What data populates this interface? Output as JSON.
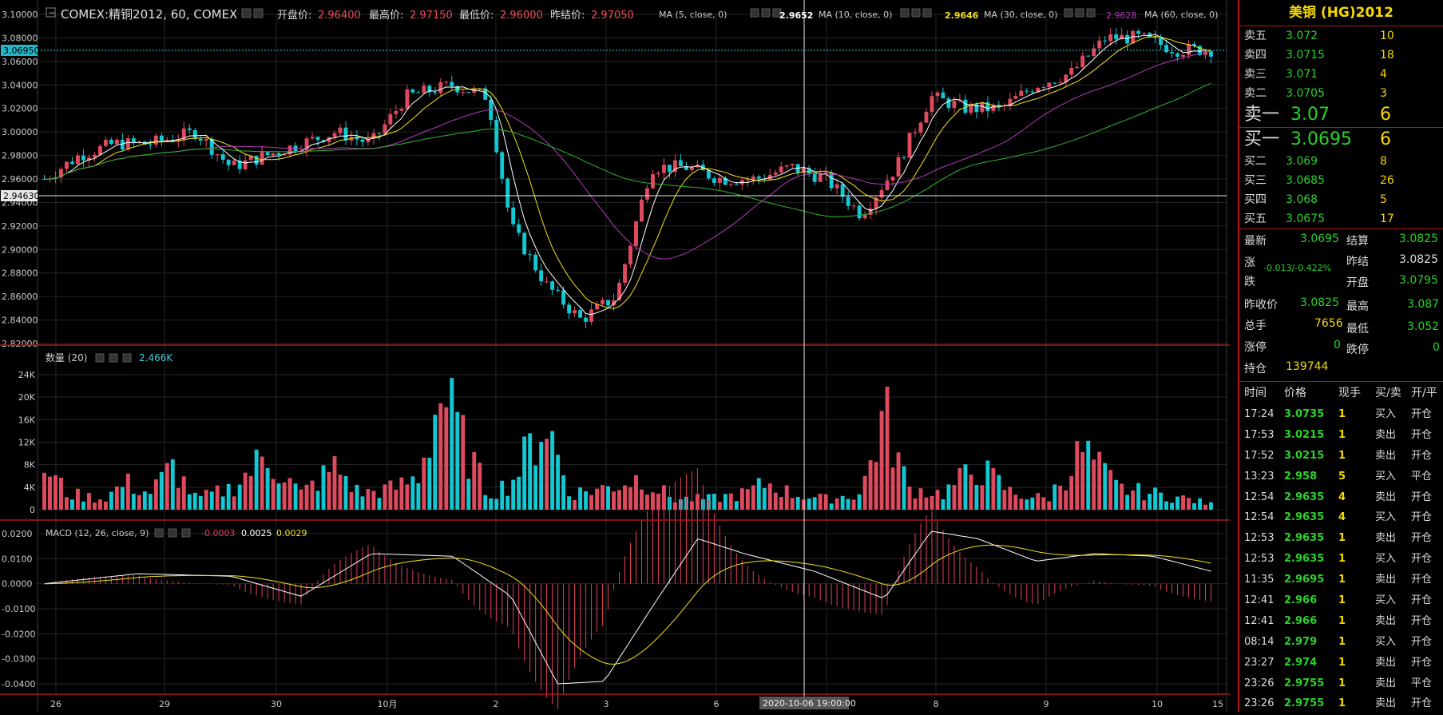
{
  "header": {
    "collapse_glyph": "−",
    "title": "COMEX:精铜2012, 60, COMEX",
    "open_label": "开盘价:",
    "open_value": "2.96400",
    "high_label": "最高价:",
    "high_value": "2.97150",
    "low_label": "最低价:",
    "low_value": "2.96000",
    "prev_label": "昨结价:",
    "prev_value": "2.97050",
    "ma": [
      {
        "label": "MA (5, close, 0)",
        "value": "2.9652",
        "color": "#ffffff"
      },
      {
        "label": "MA (10, close, 0)",
        "value": "2.9646",
        "color": "#f5e11a"
      },
      {
        "label": "MA (30, close, 0)",
        "value": "2.9628",
        "color": "#b03bb8"
      },
      {
        "label": "MA (60, close, 0)",
        "value": "",
        "color": "#2fb52f"
      }
    ]
  },
  "price_axis": {
    "ticks": [
      "3.10000",
      "3.08000",
      "3.06000",
      "3.04000",
      "3.02000",
      "3.00000",
      "2.98000",
      "2.96000",
      "2.94000",
      "2.92000",
      "2.90000",
      "2.88000",
      "2.86000",
      "2.84000",
      "2.82000"
    ],
    "current_price_tag": "3.06950",
    "crosshair_price_tag": "2.94630"
  },
  "volume": {
    "label": "数量 (20)",
    "value": "2.466K",
    "ticks": [
      "24K",
      "20K",
      "16K",
      "12K",
      "8K",
      "4K",
      "0"
    ]
  },
  "macd": {
    "label": "MACD (12, 26, close, 9)",
    "hist_value": "-0.0003",
    "macd_value": "0.0025",
    "signal_value": "0.0029",
    "ticks": [
      "0.0200",
      "0.0100",
      "0.0000",
      "-0.0100",
      "-0.0200",
      "-0.0300",
      "-0.0400"
    ]
  },
  "time_axis": {
    "labels": [
      "26",
      "29",
      "30",
      "10月",
      "2",
      "3",
      "6",
      "7",
      "8",
      "9",
      "10",
      "15"
    ],
    "crosshair_time": "2020-10-06 19:00:00"
  },
  "chart_data": {
    "type": "candlestick",
    "symbol": "COMEX:精铜2012",
    "interval": "60",
    "ylim": [
      2.82,
      3.1
    ],
    "close_path": [
      [
        0,
        2.96
      ],
      [
        0.03,
        2.98
      ],
      [
        0.06,
        2.99
      ],
      [
        0.09,
        2.99
      ],
      [
        0.13,
        3.0
      ],
      [
        0.16,
        2.97
      ],
      [
        0.19,
        2.98
      ],
      [
        0.22,
        2.99
      ],
      [
        0.25,
        3.0
      ],
      [
        0.28,
        2.99
      ],
      [
        0.31,
        3.03
      ],
      [
        0.35,
        3.04
      ],
      [
        0.38,
        3.03
      ],
      [
        0.4,
        2.92
      ],
      [
        0.43,
        2.87
      ],
      [
        0.46,
        2.84
      ],
      [
        0.49,
        2.86
      ],
      [
        0.52,
        2.97
      ],
      [
        0.55,
        2.97
      ],
      [
        0.58,
        2.96
      ],
      [
        0.61,
        2.96
      ],
      [
        0.64,
        2.97
      ],
      [
        0.67,
        2.96
      ],
      [
        0.7,
        2.93
      ],
      [
        0.73,
        2.97
      ],
      [
        0.76,
        3.03
      ],
      [
        0.79,
        3.02
      ],
      [
        0.82,
        3.02
      ],
      [
        0.85,
        3.04
      ],
      [
        0.88,
        3.05
      ],
      [
        0.91,
        3.08
      ],
      [
        0.94,
        3.08
      ],
      [
        0.97,
        3.07
      ],
      [
        1.0,
        3.07
      ]
    ],
    "volume_profile": [
      [
        0,
        8
      ],
      [
        0.02,
        3
      ],
      [
        0.05,
        2
      ],
      [
        0.07,
        5
      ],
      [
        0.09,
        3
      ],
      [
        0.11,
        8
      ],
      [
        0.13,
        2
      ],
      [
        0.16,
        4
      ],
      [
        0.19,
        10
      ],
      [
        0.22,
        3
      ],
      [
        0.25,
        8
      ],
      [
        0.27,
        3
      ],
      [
        0.3,
        4
      ],
      [
        0.32,
        6
      ],
      [
        0.34,
        22
      ],
      [
        0.36,
        12
      ],
      [
        0.38,
        3
      ],
      [
        0.4,
        5
      ],
      [
        0.43,
        17
      ],
      [
        0.45,
        3
      ],
      [
        0.48,
        4
      ],
      [
        0.51,
        6
      ],
      [
        0.54,
        2
      ],
      [
        0.57,
        2
      ],
      [
        0.6,
        3
      ],
      [
        0.62,
        5
      ],
      [
        0.64,
        3
      ],
      [
        0.67,
        2
      ],
      [
        0.7,
        3
      ],
      [
        0.72,
        18
      ],
      [
        0.74,
        4
      ],
      [
        0.77,
        3
      ],
      [
        0.8,
        8
      ],
      [
        0.83,
        3
      ],
      [
        0.86,
        2
      ],
      [
        0.89,
        11
      ],
      [
        0.92,
        4
      ],
      [
        0.95,
        3
      ],
      [
        0.98,
        2
      ],
      [
        1.0,
        1
      ]
    ],
    "macd_path": [
      [
        0,
        0.0
      ],
      [
        0.08,
        0.004
      ],
      [
        0.16,
        0.003
      ],
      [
        0.22,
        -0.005
      ],
      [
        0.28,
        0.012
      ],
      [
        0.35,
        0.011
      ],
      [
        0.4,
        -0.005
      ],
      [
        0.44,
        -0.04
      ],
      [
        0.48,
        -0.039
      ],
      [
        0.52,
        -0.01
      ],
      [
        0.56,
        0.018
      ],
      [
        0.6,
        0.012
      ],
      [
        0.66,
        0.005
      ],
      [
        0.72,
        -0.006
      ],
      [
        0.76,
        0.021
      ],
      [
        0.8,
        0.018
      ],
      [
        0.85,
        0.009
      ],
      [
        0.9,
        0.012
      ],
      [
        0.95,
        0.011
      ],
      [
        1.0,
        0.005
      ]
    ]
  },
  "quote": {
    "title": "美铜  (HG)2012",
    "asks": [
      {
        "label": "卖五",
        "price": "3.072",
        "vol": "10"
      },
      {
        "label": "卖四",
        "price": "3.0715",
        "vol": "18"
      },
      {
        "label": "卖三",
        "price": "3.071",
        "vol": "4"
      },
      {
        "label": "卖二",
        "price": "3.0705",
        "vol": "3"
      }
    ],
    "ask1": {
      "label": "卖一",
      "price": "3.07",
      "vol": "6"
    },
    "bid1": {
      "label": "买一",
      "price": "3.0695",
      "vol": "6"
    },
    "bids": [
      {
        "label": "买二",
        "price": "3.069",
        "vol": "8"
      },
      {
        "label": "买三",
        "price": "3.0685",
        "vol": "26"
      },
      {
        "label": "买四",
        "price": "3.068",
        "vol": "5"
      },
      {
        "label": "买五",
        "price": "3.0675",
        "vol": "17"
      }
    ],
    "stats": {
      "latest_label": "最新",
      "latest": "3.0695",
      "settle_label": "结算",
      "settle": "3.0825",
      "change_label": "涨跌",
      "change": "-0.013/-0.422%",
      "prev_settle_label": "昨结",
      "prev_settle": "3.0825",
      "open_label": "开盘",
      "open": "3.0795",
      "prev_close_label": "昨收价",
      "prev_close": "3.0825",
      "high_label": "最高",
      "high": "3.087",
      "volume_label": "总手",
      "volume": "7656",
      "low_label": "最低",
      "low": "3.052",
      "limit_up_label": "涨停",
      "limit_up": "0",
      "limit_down_label": "跌停",
      "limit_down": "0",
      "oi_label": "持仓",
      "oi": "139744"
    },
    "trades_header": {
      "time": "时间",
      "price": "价格",
      "qty": "现手",
      "bs": "买/卖",
      "oc": "开/平"
    },
    "trades": [
      {
        "time": "17:24",
        "price": "3.0735",
        "qty": "1",
        "bs": "买入",
        "oc": "开仓"
      },
      {
        "time": "17:53",
        "price": "3.0215",
        "qty": "1",
        "bs": "卖出",
        "oc": "开仓"
      },
      {
        "time": "17:52",
        "price": "3.0215",
        "qty": "1",
        "bs": "卖出",
        "oc": "开仓"
      },
      {
        "time": "13:23",
        "price": "2.958",
        "qty": "5",
        "bs": "买入",
        "oc": "平仓"
      },
      {
        "time": "12:54",
        "price": "2.9635",
        "qty": "4",
        "bs": "卖出",
        "oc": "开仓"
      },
      {
        "time": "12:54",
        "price": "2.9635",
        "qty": "4",
        "bs": "买入",
        "oc": "开仓"
      },
      {
        "time": "12:53",
        "price": "2.9635",
        "qty": "1",
        "bs": "卖出",
        "oc": "开仓"
      },
      {
        "time": "12:53",
        "price": "2.9635",
        "qty": "1",
        "bs": "买入",
        "oc": "开仓"
      },
      {
        "time": "11:35",
        "price": "2.9695",
        "qty": "1",
        "bs": "卖出",
        "oc": "开仓"
      },
      {
        "time": "12:41",
        "price": "2.966",
        "qty": "1",
        "bs": "买入",
        "oc": "开仓"
      },
      {
        "time": "12:41",
        "price": "2.966",
        "qty": "1",
        "bs": "卖出",
        "oc": "开仓"
      },
      {
        "time": "08:14",
        "price": "2.979",
        "qty": "1",
        "bs": "买入",
        "oc": "开仓"
      },
      {
        "time": "23:27",
        "price": "2.974",
        "qty": "1",
        "bs": "卖出",
        "oc": "开仓"
      },
      {
        "time": "23:26",
        "price": "2.9755",
        "qty": "1",
        "bs": "卖出",
        "oc": "平仓"
      },
      {
        "time": "23:26",
        "price": "2.9755",
        "qty": "1",
        "bs": "卖出",
        "oc": "开仓"
      }
    ]
  },
  "colors": {
    "up": "#e04a5f",
    "down": "#12c8d2",
    "grid": "#262626",
    "divider": "#b01818",
    "ma5": "#ffffff",
    "ma10": "#f5e11a",
    "ma30": "#b03bb8",
    "ma60": "#2fb52f"
  }
}
